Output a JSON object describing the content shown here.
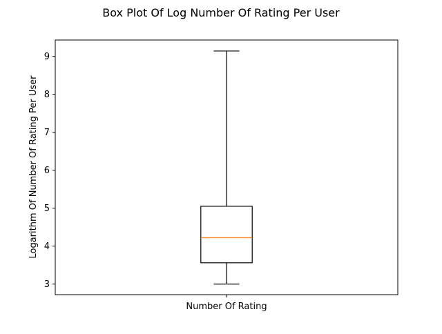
{
  "chart_data": {
    "type": "box",
    "title": "Box Plot Of Log Number Of Rating Per User",
    "xlabel": "",
    "ylabel": "Logarithm Of Number Of Rating Per User",
    "categories": [
      "Number Of Rating"
    ],
    "boxes": [
      {
        "category": "Number Of Rating",
        "whisker_low": 3.0,
        "q1": 3.56,
        "median": 4.22,
        "q3": 5.05,
        "whisker_high": 9.14
      }
    ],
    "ylim": [
      2.72,
      9.43
    ],
    "yticks": [
      3,
      4,
      5,
      6,
      7,
      8,
      9
    ],
    "grid": false,
    "legend": "none",
    "colors": {
      "box": "#000000",
      "whisker": "#000000",
      "median": "#ff7f0e"
    }
  }
}
